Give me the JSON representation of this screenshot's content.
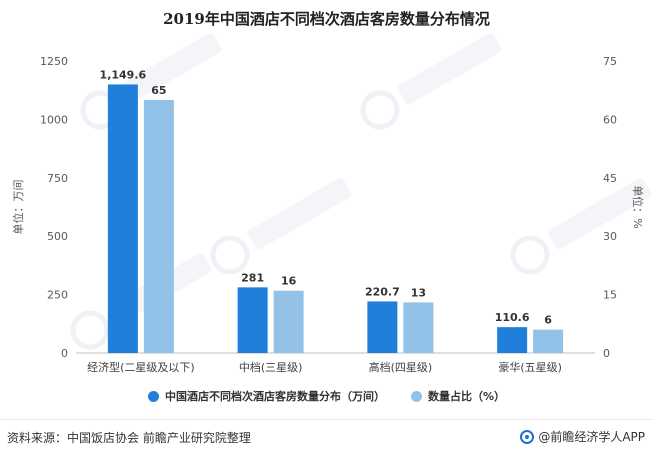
{
  "chart_data": {
    "type": "bar",
    "title": "2019年中国酒店不同档次酒店客房数量分布情况",
    "categories": [
      "经济型(二星级及以下)",
      "中档(三星级)",
      "高档(四星级)",
      "豪华(五星级)"
    ],
    "series": [
      {
        "name": "中国酒店不同档次酒店客房数量分布（万间）",
        "axis": "left",
        "color": "#1f7fdb",
        "values": [
          1149.6,
          281,
          220.7,
          110.6
        ],
        "labels": [
          "1,149.6",
          "281",
          "220.7",
          "110.6"
        ]
      },
      {
        "name": "数量占比（%）",
        "axis": "right",
        "color": "#92c2e8",
        "values": [
          65,
          16,
          13,
          6
        ],
        "labels": [
          "65",
          "16",
          "13",
          "6"
        ]
      }
    ],
    "y_left": {
      "label": "单位：万间",
      "ylim": [
        0,
        1250
      ],
      "ticks": [
        "0",
        "250",
        "500",
        "750",
        "1000",
        "1250"
      ]
    },
    "y_right": {
      "label": "单位：%",
      "ylim": [
        0,
        75
      ],
      "ticks": [
        "0",
        "15",
        "30",
        "45",
        "60",
        "75"
      ]
    },
    "grid": false,
    "legend_position": "bottom"
  },
  "footer": {
    "source": "资料来源：中国饭店协会 前瞻产业研究院整理",
    "brand": "@前瞻经济学人APP"
  }
}
